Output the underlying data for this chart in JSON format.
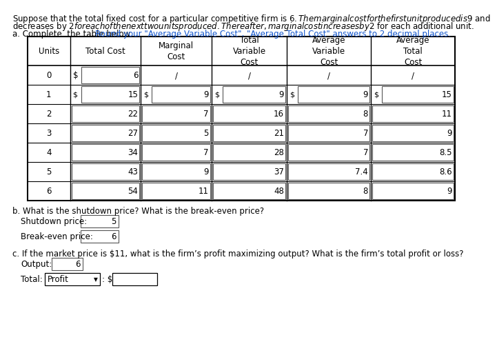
{
  "title_line1": "Suppose that the total fixed cost for a particular competitive firm is $6. The marginal cost for the first unit produced is $9 and",
  "title_line2": "decreases by $2 for each of the next two units produced. Thereafter, marginal cost increases by $2 for each additional unit.",
  "part_a_black": "a. Complete  the table below. ",
  "part_a_blue": "Round your \"Average Variable Cost\", \"Average Total Cost\" answers to 2 decimal places.",
  "col_headers": [
    "Units",
    "Total Cost",
    "Marginal\nCost",
    "Total\nVariable\nCost",
    "Average\nVariable\nCost",
    "Average\nTotal\nCost"
  ],
  "table_data": [
    [
      "0",
      "6",
      "/",
      "/",
      "/",
      "/"
    ],
    [
      "1",
      "15",
      "9",
      "9",
      "9",
      "15"
    ],
    [
      "2",
      "22",
      "7",
      "16",
      "8",
      "11"
    ],
    [
      "3",
      "27",
      "5",
      "21",
      "7",
      "9"
    ],
    [
      "4",
      "34",
      "7",
      "28",
      "7",
      "8.5"
    ],
    [
      "5",
      "43",
      "9",
      "37",
      "7.4",
      "8.6"
    ],
    [
      "6",
      "54",
      "11",
      "48",
      "8",
      "9"
    ]
  ],
  "dollar_row0": [
    false,
    true,
    false,
    false,
    false,
    false
  ],
  "dollar_row1": [
    false,
    false,
    true,
    true,
    true,
    true
  ],
  "slash_row": [
    false,
    false,
    true,
    true,
    true,
    true
  ],
  "part_b_label": "b. What is the shutdown price? What is the break-even price?",
  "shutdown_label": "Shutdown price:",
  "shutdown_value": "5",
  "breakeven_label": "Break-even price:",
  "breakeven_value": "6",
  "part_c_label": "c. If the market price is $11, what is the firm’s profit maximizing output? What is the firm’s total profit or loss?",
  "output_label": "Output:",
  "output_value": "6",
  "total_label": "Total:",
  "total_dropdown": "Profit",
  "bg_color": "#ffffff",
  "border_color": "#000000",
  "box_color": "#555555",
  "link_color": "#1155cc",
  "text_color": "#000000",
  "font_size": 8.5,
  "title_font_size": 8.5
}
